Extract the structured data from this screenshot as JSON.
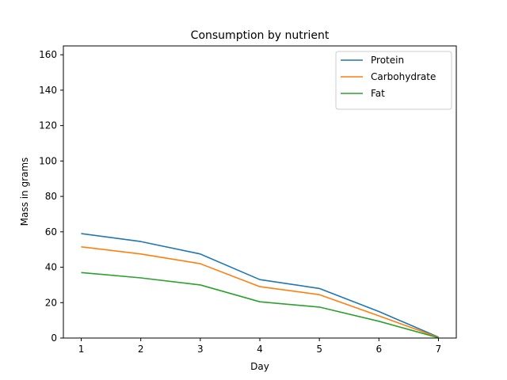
{
  "chart_data": {
    "type": "line",
    "title": "Consumption by nutrient",
    "xlabel": "Day",
    "ylabel": "Mass in grams",
    "x": [
      1,
      2,
      3,
      4,
      5,
      6,
      7
    ],
    "xlim": [
      0.7,
      7.3
    ],
    "ylim": [
      0,
      165
    ],
    "xticks": [
      1,
      2,
      3,
      4,
      5,
      6,
      7
    ],
    "yticks": [
      0,
      20,
      40,
      60,
      80,
      100,
      120,
      140,
      160
    ],
    "grid": false,
    "legend_position": "upper-right",
    "series": [
      {
        "name": "Protein",
        "color": "#1f77b4",
        "values": [
          59,
          54.5,
          47.5,
          33,
          28,
          15,
          0.5
        ]
      },
      {
        "name": "Carbohydrate",
        "color": "#ff7f0e",
        "values": [
          51.5,
          47.5,
          42,
          29,
          24.5,
          12.5,
          0.3
        ]
      },
      {
        "name": "Fat",
        "color": "#2ca02c",
        "values": [
          37,
          34,
          30,
          20.5,
          17.5,
          9.5,
          0.2
        ]
      }
    ]
  }
}
